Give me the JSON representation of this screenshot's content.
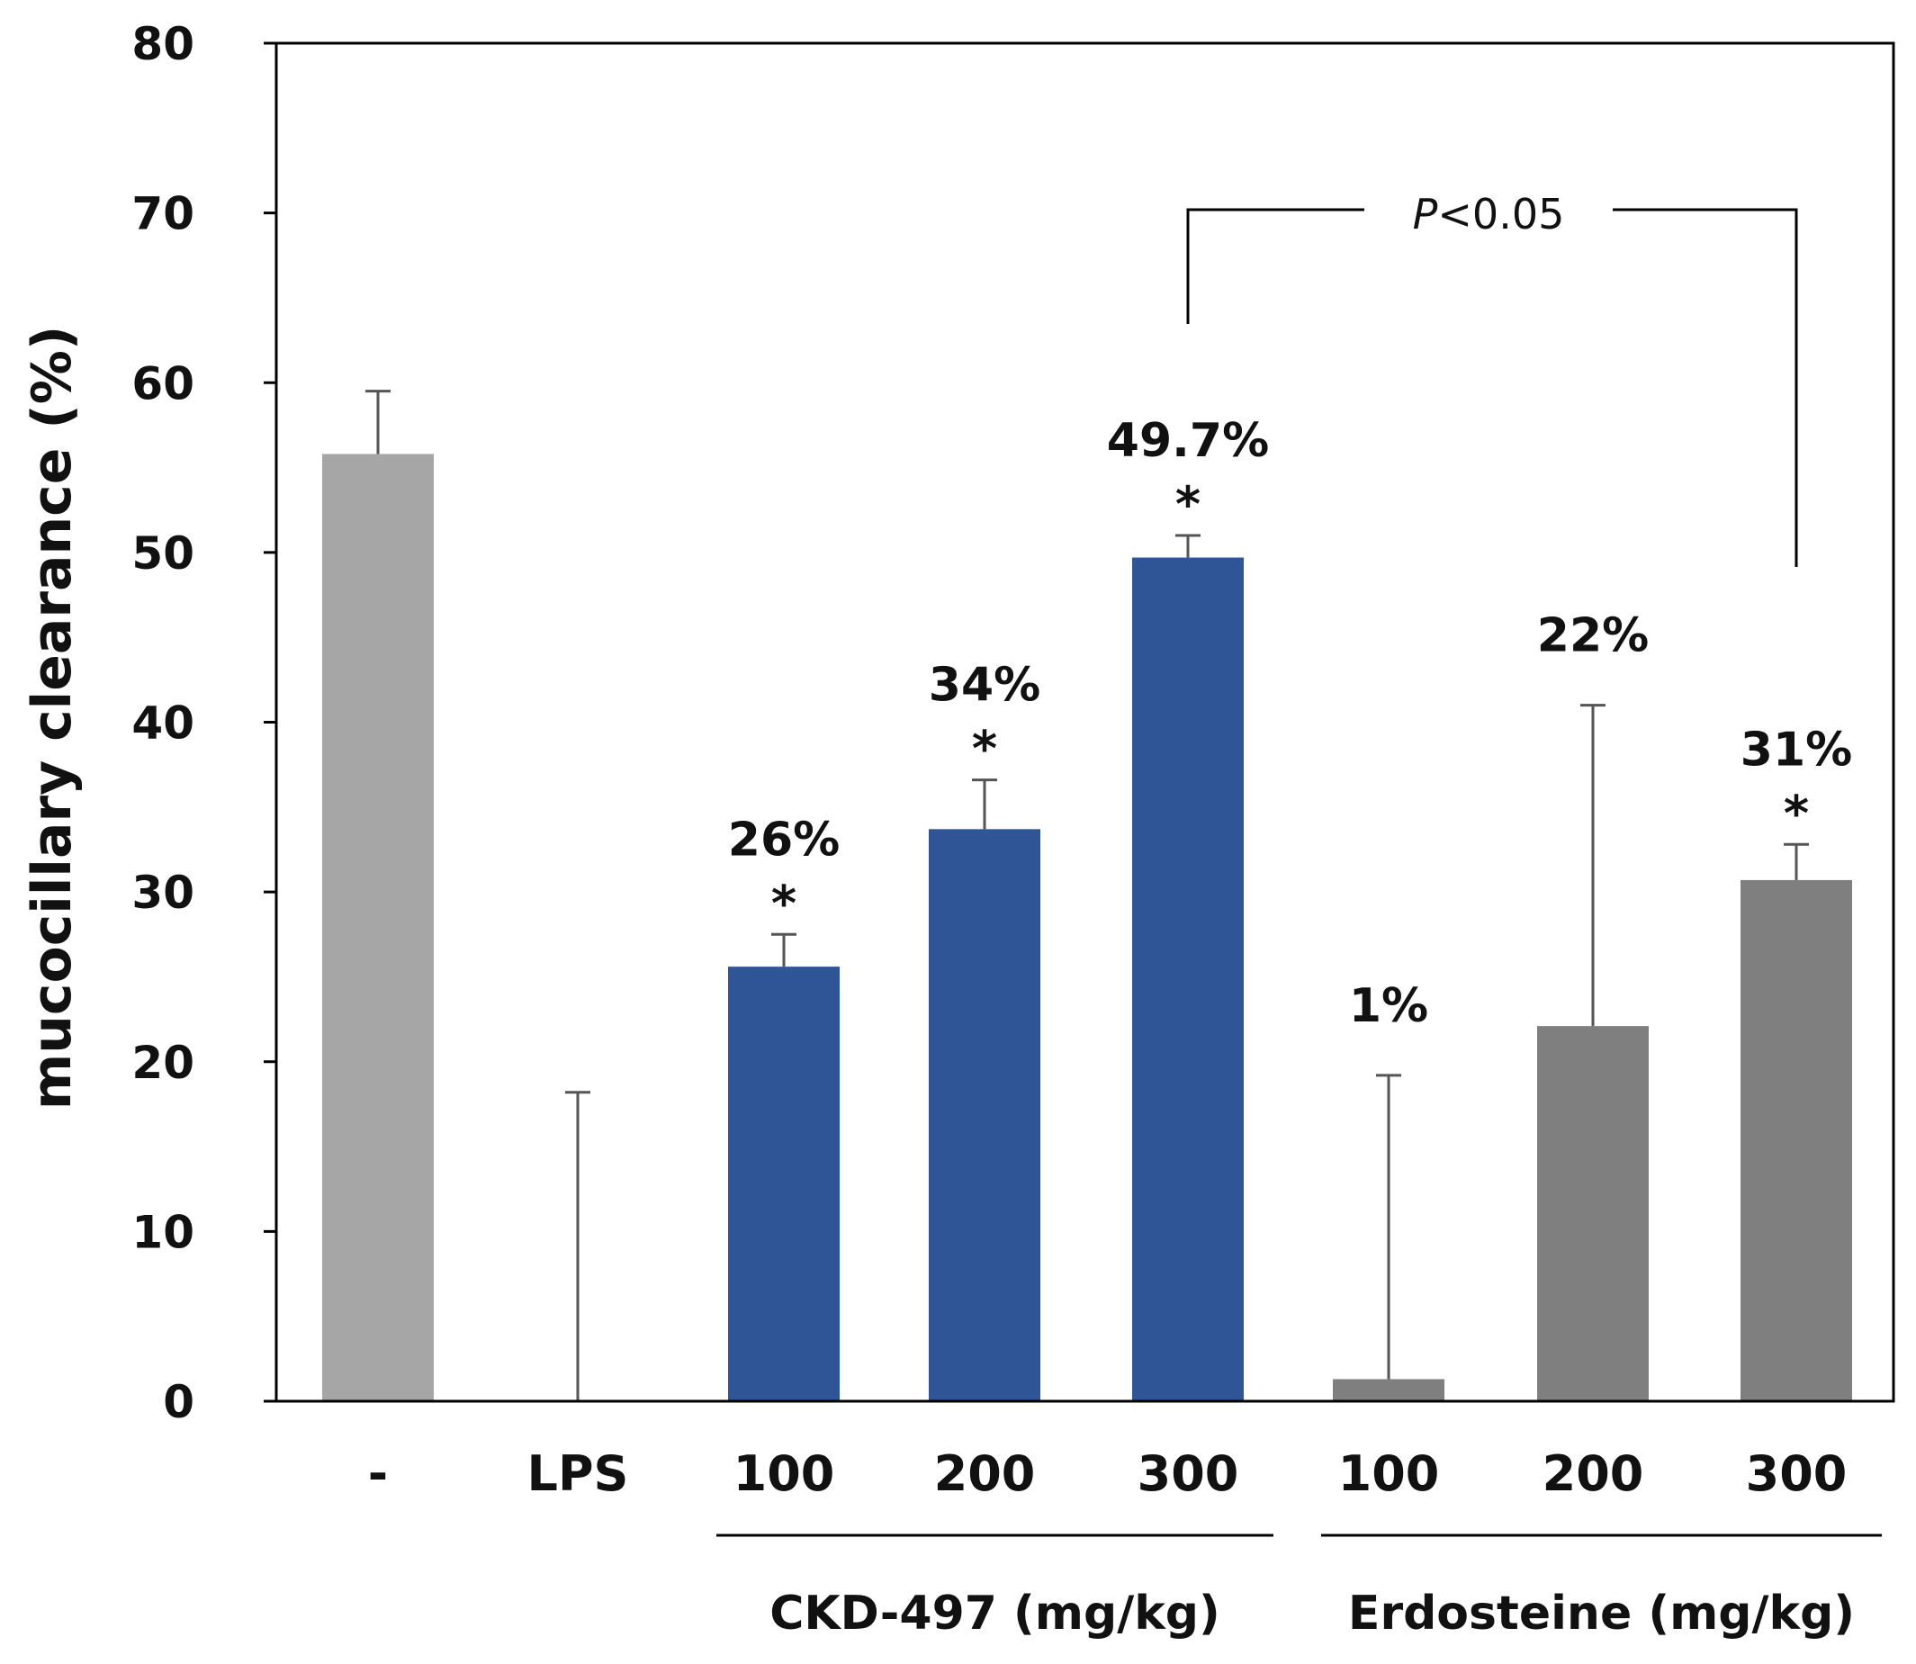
{
  "chart_data": {
    "type": "bar",
    "title": "",
    "xlabel": "",
    "ylabel": "mucocillary clearance (%)",
    "ylim": [
      0,
      80
    ],
    "yticks": [
      0,
      10,
      20,
      30,
      40,
      50,
      60,
      70,
      80
    ],
    "grid": false,
    "categories": [
      "-",
      "LPS",
      "100",
      "200",
      "300",
      "100",
      "200",
      "300"
    ],
    "values": [
      55.8,
      0,
      25.6,
      33.7,
      49.7,
      1.3,
      22.1,
      30.7
    ],
    "error_upper": [
      59.5,
      18.2,
      27.5,
      36.6,
      51.0,
      19.2,
      41.0,
      32.8
    ],
    "colors": [
      "#a6a6a6",
      "#a6a6a6",
      "#305596",
      "#305596",
      "#305596",
      "#7f7f7f",
      "#7f7f7f",
      "#7f7f7f"
    ],
    "data_labels": [
      "",
      "",
      "26%",
      "34%",
      "49.7%",
      "1%",
      "22%",
      "31%"
    ],
    "significance_marks": [
      "",
      "",
      "*",
      "*",
      "*",
      "",
      "",
      "*"
    ],
    "groups": [
      {
        "label": "CKD-497 (mg/kg)",
        "start": 2,
        "end": 4
      },
      {
        "label": "Erdosteine (mg/kg)",
        "start": 5,
        "end": 7
      }
    ],
    "comparison": {
      "from": 4,
      "to": 7,
      "p_symbol": "P",
      "p_text": "<0.05"
    }
  }
}
